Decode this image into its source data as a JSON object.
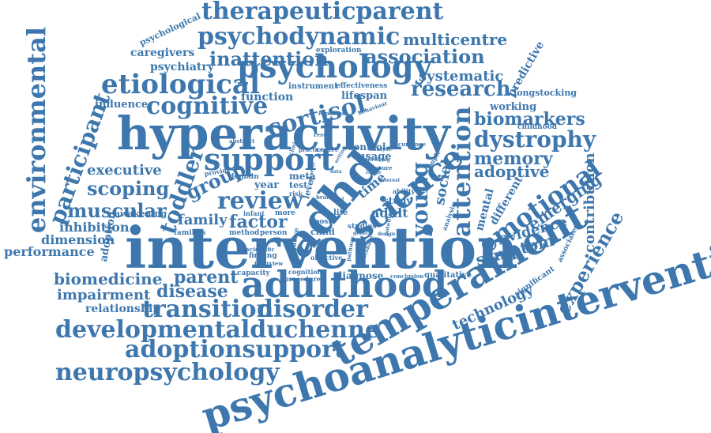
{
  "accent_color": "#3d77ad",
  "words": [
    "intervention",
    "psychoanalyticintervention",
    "hyperactivity",
    "temperament",
    "adulthood",
    "adhd",
    "psychology",
    "support",
    "science",
    "emotional",
    "cognitive",
    "therapeuticparent",
    "psychodynamic",
    "etiological",
    "environmental",
    "attention",
    "review",
    "developmentalduchenne",
    "adoptionsupport",
    "neuropsychology",
    "transition",
    "disorder",
    "dystrophy",
    "research",
    "participant",
    "toddler",
    "young",
    "cortisol",
    "muscular",
    "scoping",
    "experience",
    "association",
    "inattention",
    "multicentre",
    "systematic",
    "biomarkers",
    "memory",
    "adoptive",
    "executive",
    "group",
    "factor",
    "family",
    "inhibition",
    "dimension",
    "performance",
    "biomedicine",
    "impairment",
    "relationship",
    "parent",
    "disease",
    "symptom",
    "evidence",
    "emerging",
    "contribution",
    "technology",
    "social",
    "mental",
    "different",
    "caregivers",
    "psychiatry",
    "psychological",
    "exploration",
    "predictive",
    "longstocking",
    "working",
    "childhood",
    "influence",
    "function",
    "instrument",
    "effectiveness",
    "lifespan",
    "usage",
    "control",
    "adult",
    "study",
    "domain",
    "year",
    "meta",
    "test",
    "child",
    "post",
    "studies",
    "adoption",
    "awakening",
    "families",
    "method",
    "person",
    "finding",
    "capacity",
    "diagnose",
    "qualitative",
    "conclusion",
    "interview",
    "procedure",
    "cognition",
    "objective",
    "scientific",
    "negative",
    "significant",
    "associated",
    "analysis",
    "sample",
    "time",
    "ability",
    "life",
    "infant",
    "more",
    "risk",
    "level",
    "provide",
    "centre",
    "practice",
    "result",
    "abstract",
    "expected",
    "behaviour",
    "occurrence",
    "analyse",
    "measure",
    "range",
    "involving",
    "potential",
    "design",
    "database",
    "pathway",
    "genetic",
    "clinical",
    "brain",
    "general",
    "vocal",
    "setting",
    "data",
    "interest"
  ]
}
